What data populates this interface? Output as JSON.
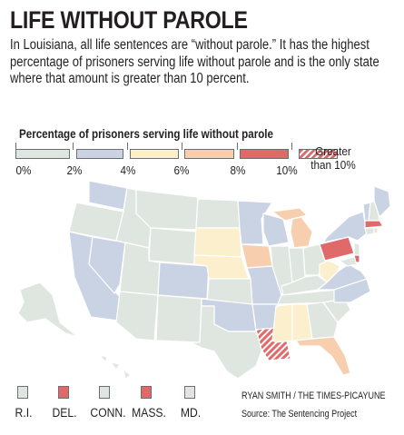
{
  "title": "LIFE WITHOUT PAROLE",
  "description": "In Louisiana, all life sentences are “without parole.” It has the highest percentage of prisoners serving life without parole and is the only state where that amount is greater than 10 percent.",
  "legend": {
    "title": "Percentage of prisoners serving life without parole",
    "ticks": [
      "0%",
      "2%",
      "4%",
      "6%",
      "8%",
      "10%"
    ],
    "greater_label": "Greater than 10%",
    "bins": [
      {
        "range": "0-2%",
        "color": "#dfe6e0"
      },
      {
        "range": "2-4%",
        "color": "#c9d3e4"
      },
      {
        "range": "4-6%",
        "color": "#fcefcd"
      },
      {
        "range": "6-8%",
        "color": "#f7cfae"
      },
      {
        "range": "8-10%",
        "color": "#e0696a"
      },
      {
        "range": "Greater than 10%",
        "color": "#e0696a",
        "pattern": "hatched"
      }
    ]
  },
  "map": {
    "states_shown_in_color": [
      {
        "state": "Louisiana",
        "bin": "Greater than 10%"
      },
      {
        "state": "Pennsylvania",
        "bin": "8-10%"
      },
      {
        "state": "Massachusetts",
        "bin": "8-10%"
      },
      {
        "state": "Delaware",
        "bin": "8-10%"
      },
      {
        "state": "Michigan",
        "bin": "6-8%"
      },
      {
        "state": "Iowa",
        "bin": "6-8%"
      },
      {
        "state": "Florida",
        "bin": "6-8%"
      },
      {
        "state": "Mississippi",
        "bin": "4-6%"
      },
      {
        "state": "Alabama",
        "bin": "4-6%"
      },
      {
        "state": "South Dakota",
        "bin": "4-6%"
      },
      {
        "state": "Nebraska",
        "bin": "4-6%"
      },
      {
        "state": "West Virginia",
        "bin": "4-6%"
      },
      {
        "state": "Washington",
        "bin": "2-4%"
      },
      {
        "state": "Nevada",
        "bin": "2-4%"
      },
      {
        "state": "California",
        "bin": "2-4%"
      },
      {
        "state": "Colorado",
        "bin": "2-4%"
      },
      {
        "state": "Missouri",
        "bin": "2-4%"
      },
      {
        "state": "Arkansas",
        "bin": "2-4%"
      },
      {
        "state": "Oklahoma",
        "bin": "2-4%"
      },
      {
        "state": "New York",
        "bin": "2-4%"
      },
      {
        "state": "Maine",
        "bin": "2-4%"
      },
      {
        "state": "Vermont",
        "bin": "2-4%"
      },
      {
        "state": "Minnesota",
        "bin": "2-4%"
      },
      {
        "state": "Wisconsin",
        "bin": "2-4%"
      },
      {
        "state": "Virginia",
        "bin": "2-4%"
      },
      {
        "state": "North Carolina",
        "bin": "2-4%"
      }
    ],
    "default_bin": "0-2%"
  },
  "small_states": [
    {
      "label": "R.I.",
      "color": "#dfe6e0"
    },
    {
      "label": "DEL.",
      "color": "#e0696a"
    },
    {
      "label": "CONN.",
      "color": "#dfe6e0"
    },
    {
      "label": "MASS.",
      "color": "#e0696a"
    },
    {
      "label": "MD.",
      "color": "#dfe6e0"
    }
  ],
  "credit": "RYAN SMITH / THE TIMES-PICAYUNE",
  "source": "Source: The Sentencing Project",
  "colors": {
    "border": "#ffffff",
    "outline": "#6d6e71",
    "text": "#231f20"
  }
}
